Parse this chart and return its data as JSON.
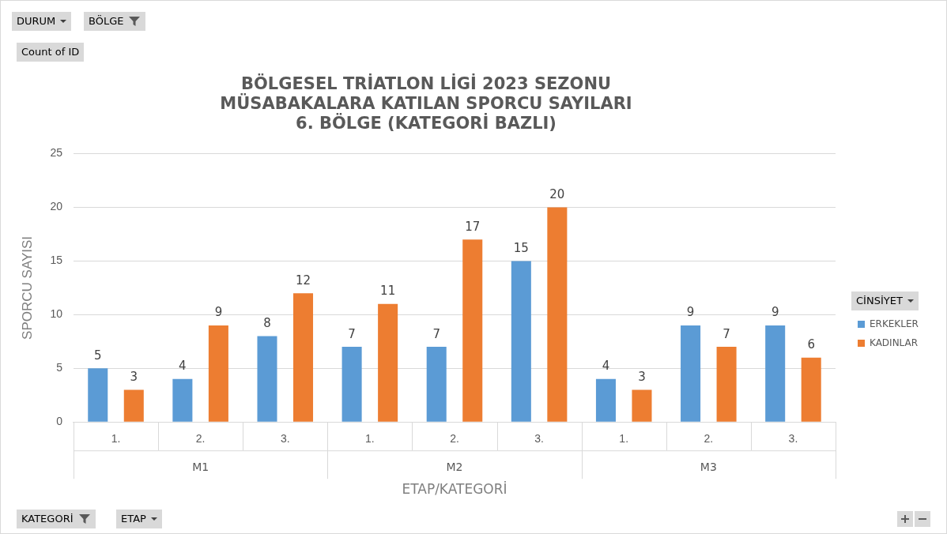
{
  "chart_data": {
    "type": "bar",
    "title": "BÖLGESEL TRİATLON LİGİ 2023 SEZONU\nMÜSABAKALARA KATILAN SPORCU SAYILARI\n6. BÖLGE (KATEGORİ BAZLI)",
    "xlabel": "ETAP/KATEGORİ",
    "ylabel": "SPORCU SAYISI",
    "legend_title": "CİNSİYET",
    "categories": [
      "1.",
      "2.",
      "3.",
      "1.",
      "2.",
      "3.",
      "1.",
      "2.",
      "3."
    ],
    "series": [
      {
        "name": "ERKEKLER",
        "color": "#5b9bd5",
        "values": [
          5,
          4,
          8,
          7,
          7,
          15,
          4,
          9,
          9
        ]
      },
      {
        "name": "KADINLAR",
        "color": "#ed7d31",
        "values": [
          3,
          9,
          12,
          11,
          17,
          20,
          3,
          7,
          6
        ]
      }
    ],
    "ylim": [
      0,
      25
    ],
    "yticks": [
      0,
      5,
      10,
      15,
      20,
      25
    ],
    "grid": "y",
    "legend": "right",
    "data_labels": true,
    "annotations": [
      "M1",
      "M2",
      "M3",
      "DURUM",
      "BÖLGE",
      "Count of ID",
      "KATEGORİ",
      "ETAP"
    ]
  }
}
